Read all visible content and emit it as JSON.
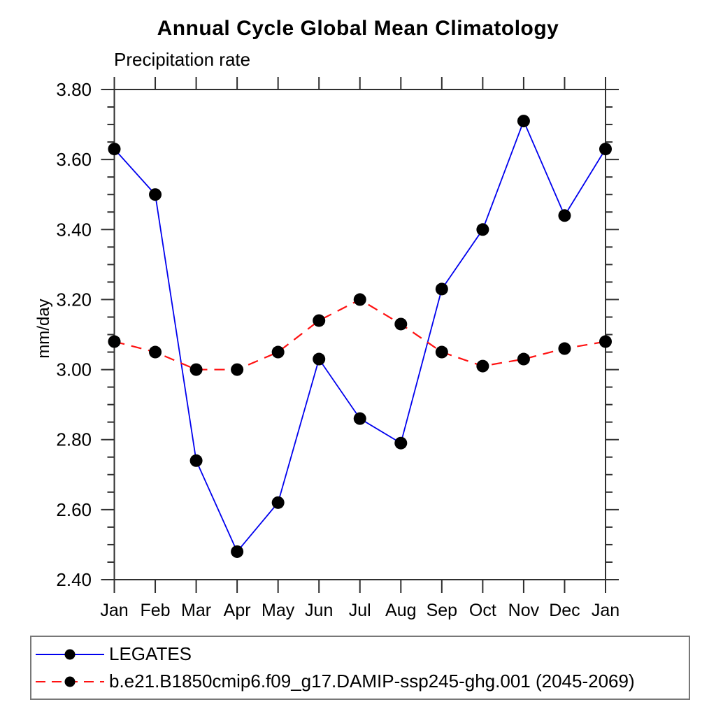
{
  "chart_data": {
    "type": "line",
    "title": "Annual Cycle Global Mean Climatology",
    "subtitle": "Precipitation rate",
    "ylabel": "mm/day",
    "xlabel": "",
    "categories": [
      "Jan",
      "Feb",
      "Mar",
      "Apr",
      "May",
      "Jun",
      "Jul",
      "Aug",
      "Sep",
      "Oct",
      "Nov",
      "Dec",
      "Jan"
    ],
    "ylim": [
      2.4,
      3.8
    ],
    "ytick_step": 0.2,
    "ytick_minor_step": 0.05,
    "ytick_label_format": "0.00",
    "grid": false,
    "legend_position": "bottom-left-boxed",
    "axis_color": "#2f2f2f",
    "series": [
      {
        "name": "LEGATES",
        "color": "#0000ee",
        "style": "solid",
        "marker": "circle",
        "marker_color": "#000000",
        "values": [
          3.63,
          3.5,
          2.74,
          2.48,
          2.62,
          3.03,
          2.86,
          2.79,
          3.23,
          3.4,
          3.71,
          3.44,
          3.63
        ]
      },
      {
        "name": "b.e21.B1850cmip6.f09_g17.DAMIP-ssp245-ghg.001 (2045-2069)",
        "color": "#ff1111",
        "style": "dashed",
        "marker": "circle",
        "marker_color": "#000000",
        "values": [
          3.08,
          3.05,
          3.0,
          3.0,
          3.05,
          3.14,
          3.2,
          3.13,
          3.05,
          3.01,
          3.03,
          3.06,
          3.08
        ]
      }
    ]
  }
}
